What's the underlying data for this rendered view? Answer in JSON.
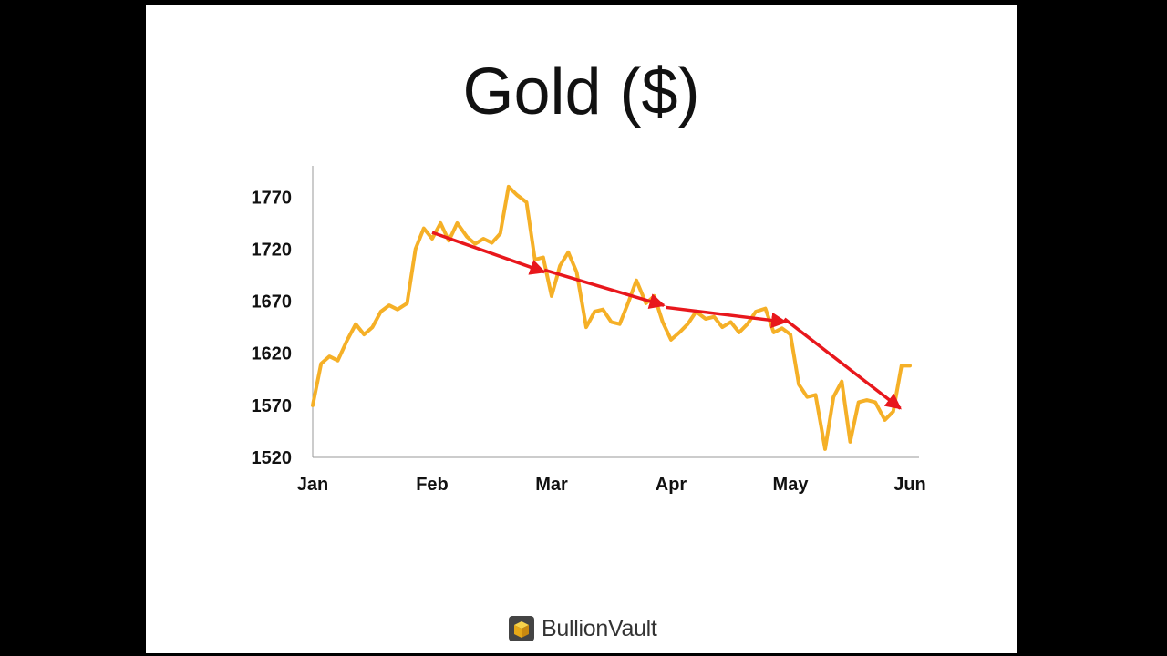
{
  "slide": {
    "title": "Gold ($)",
    "logo_text": "BullionVault"
  },
  "colors": {
    "line": "#F5B027",
    "arrow": "#E8171C",
    "axis": "#999999"
  },
  "chart_data": {
    "type": "line",
    "title": "Gold ($)",
    "xlabel": "",
    "ylabel": "",
    "x_ticks": [
      "Jan",
      "Feb",
      "Mar",
      "Apr",
      "May",
      "Jun"
    ],
    "y_ticks": [
      1520,
      1570,
      1620,
      1670,
      1720,
      1770
    ],
    "ylim": [
      1520,
      1800
    ],
    "xlim": [
      0,
      5
    ],
    "grid": false,
    "series": [
      {
        "x": [
          0,
          0.07,
          0.14,
          0.21,
          0.29,
          0.36,
          0.43,
          0.5,
          0.57,
          0.64,
          0.71,
          0.79,
          0.86,
          0.93,
          1.0,
          1.07,
          1.14,
          1.21,
          1.29,
          1.36,
          1.43,
          1.5,
          1.57,
          1.64,
          1.71,
          1.79,
          1.86,
          1.93,
          2.0,
          2.07,
          2.14,
          2.21,
          2.29,
          2.36,
          2.43,
          2.5,
          2.57,
          2.64,
          2.71,
          2.79,
          2.86,
          2.93,
          3.0,
          3.07,
          3.14,
          3.21,
          3.29,
          3.36,
          3.43,
          3.5,
          3.57,
          3.64,
          3.71,
          3.79,
          3.86,
          3.93,
          4.0,
          4.07,
          4.14,
          4.21,
          4.29,
          4.36,
          4.43,
          4.5,
          4.57,
          4.64,
          4.71,
          4.79,
          4.86,
          4.93,
          5.0
        ],
        "values": [
          1570,
          1610,
          1617,
          1613,
          1633,
          1648,
          1638,
          1645,
          1660,
          1666,
          1662,
          1668,
          1720,
          1740,
          1730,
          1745,
          1728,
          1745,
          1732,
          1725,
          1730,
          1726,
          1735,
          1780,
          1772,
          1765,
          1710,
          1712,
          1675,
          1704,
          1717,
          1698,
          1645,
          1660,
          1662,
          1650,
          1648,
          1668,
          1690,
          1668,
          1675,
          1650,
          1633,
          1640,
          1648,
          1660,
          1653,
          1655,
          1645,
          1650,
          1640,
          1648,
          1660,
          1663,
          1640,
          1644,
          1638,
          1590,
          1578,
          1580,
          1528,
          1578,
          1593,
          1535,
          1573,
          1575,
          1573,
          1556,
          1564,
          1608,
          1608
        ]
      }
    ],
    "annotations": [
      {
        "type": "arrow",
        "from": [
          1.0,
          1736
        ],
        "to": [
          1.94,
          1698
        ]
      },
      {
        "type": "arrow",
        "from": [
          1.94,
          1700
        ],
        "to": [
          2.94,
          1666
        ]
      },
      {
        "type": "arrow",
        "from": [
          2.96,
          1664
        ],
        "to": [
          3.96,
          1650
        ]
      },
      {
        "type": "arrow",
        "from": [
          3.95,
          1653
        ],
        "to": [
          4.92,
          1567
        ]
      }
    ]
  }
}
